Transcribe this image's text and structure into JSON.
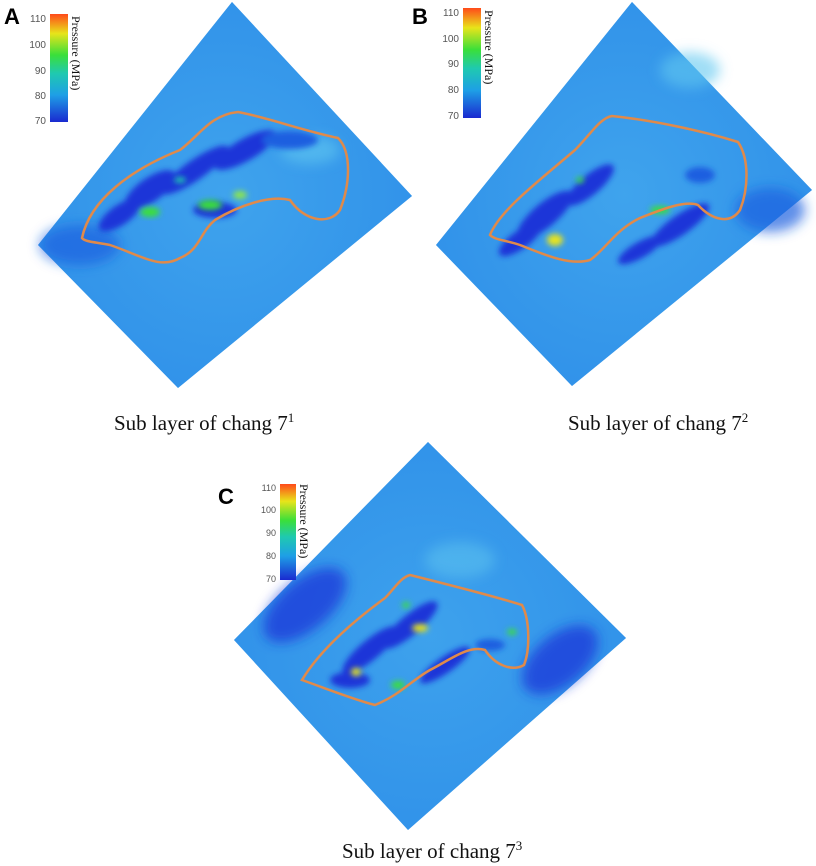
{
  "panels": [
    {
      "letter": "A",
      "caption_base": "Sub layer of chang 7",
      "caption_sup": "1",
      "colorbar": {
        "title": "Pressure (MPa)",
        "ticks": [
          "110",
          "100",
          "90",
          "80",
          "70"
        ]
      }
    },
    {
      "letter": "B",
      "caption_base": "Sub layer of chang 7",
      "caption_sup": "2",
      "colorbar": {
        "title": "Pressure (MPa)",
        "ticks": [
          "110",
          "100",
          "90",
          "80",
          "70"
        ]
      }
    },
    {
      "letter": "C",
      "caption_base": "Sub layer of chang 7",
      "caption_sup": "3",
      "colorbar": {
        "title": "Pressure (MPa)",
        "ticks": [
          "110",
          "100",
          "90",
          "80",
          "70"
        ]
      }
    }
  ],
  "colors": {
    "low": "#1a2ad0",
    "mid_low": "#1e6fe6",
    "background_field": "#2f93ea",
    "mid": "#1fc9b0",
    "mid_high": "#3adf3a",
    "high_yellow": "#e8e41a",
    "high": "#ff5a1a",
    "boundary_outline": "#e08a4a"
  }
}
